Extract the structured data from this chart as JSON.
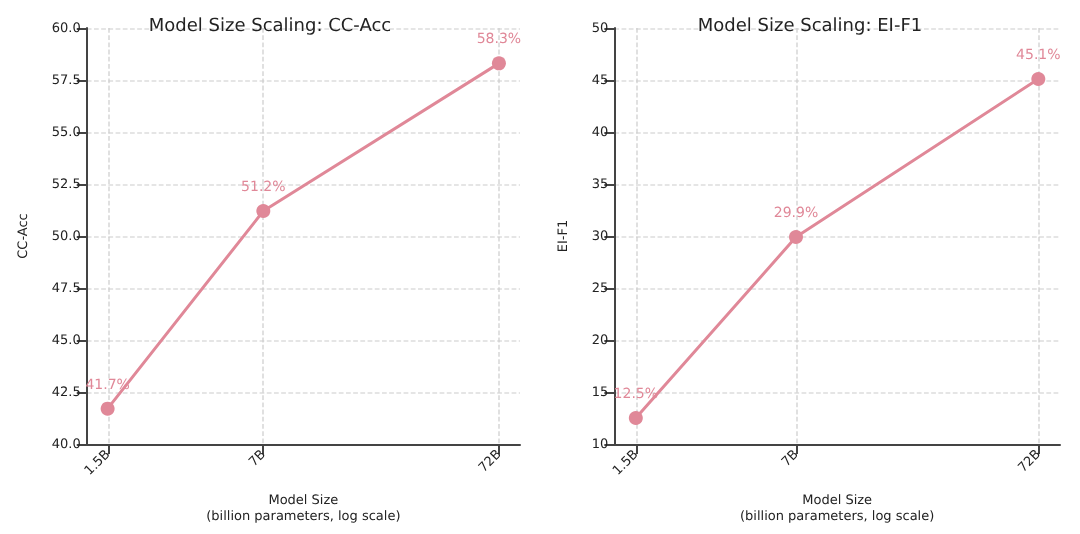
{
  "chart_data": [
    {
      "type": "line",
      "title": "Model Size Scaling: CC-Acc",
      "xlabel": "Model Size\n(billion parameters, log scale)",
      "ylabel": "CC-Acc",
      "log": "x",
      "x": [
        1.5,
        7,
        72
      ],
      "series": [
        {
          "color": "#e08898",
          "values": [
            41.7,
            51.2,
            58.3
          ],
          "value_labels": [
            "41.7%",
            "51.2%",
            "58.3%"
          ]
        }
      ],
      "xlim": [
        1.22,
        88.7
      ],
      "xticks": [
        {
          "value": 1.5,
          "label": "1.5B"
        },
        {
          "value": 7,
          "label": "7B"
        },
        {
          "value": 72,
          "label": "72B"
        }
      ],
      "ylim": [
        40,
        60
      ],
      "yticks": [
        {
          "value": 40,
          "label": "40.0"
        },
        {
          "value": 42.5,
          "label": "42.5"
        },
        {
          "value": 45,
          "label": "45.0"
        },
        {
          "value": 47.5,
          "label": "47.5"
        },
        {
          "value": 50,
          "label": "50.0"
        },
        {
          "value": 52.5,
          "label": "52.5"
        },
        {
          "value": 55,
          "label": "55.0"
        },
        {
          "value": 57.5,
          "label": "57.5"
        },
        {
          "value": 60,
          "label": "60.0"
        }
      ],
      "grid": true,
      "marker": "circle",
      "line_style": "solid"
    },
    {
      "type": "line",
      "title": "Model Size Scaling: EI-F1",
      "xlabel": "Model Size\n(billion parameters, log scale)",
      "ylabel": "EI-F1",
      "log": "x",
      "x": [
        1.5,
        7,
        72
      ],
      "series": [
        {
          "color": "#e08898",
          "values": [
            12.5,
            29.9,
            45.1
          ],
          "value_labels": [
            "12.5%",
            "29.9%",
            "45.1%"
          ]
        }
      ],
      "xlim": [
        1.22,
        88.7
      ],
      "xticks": [
        {
          "value": 1.5,
          "label": "1.5B"
        },
        {
          "value": 7,
          "label": "7B"
        },
        {
          "value": 72,
          "label": "72B"
        }
      ],
      "ylim": [
        10,
        50
      ],
      "yticks": [
        10,
        15,
        20,
        25,
        30,
        35,
        40,
        45,
        50
      ],
      "grid": true,
      "marker": "circle",
      "line_style": "solid"
    }
  ]
}
